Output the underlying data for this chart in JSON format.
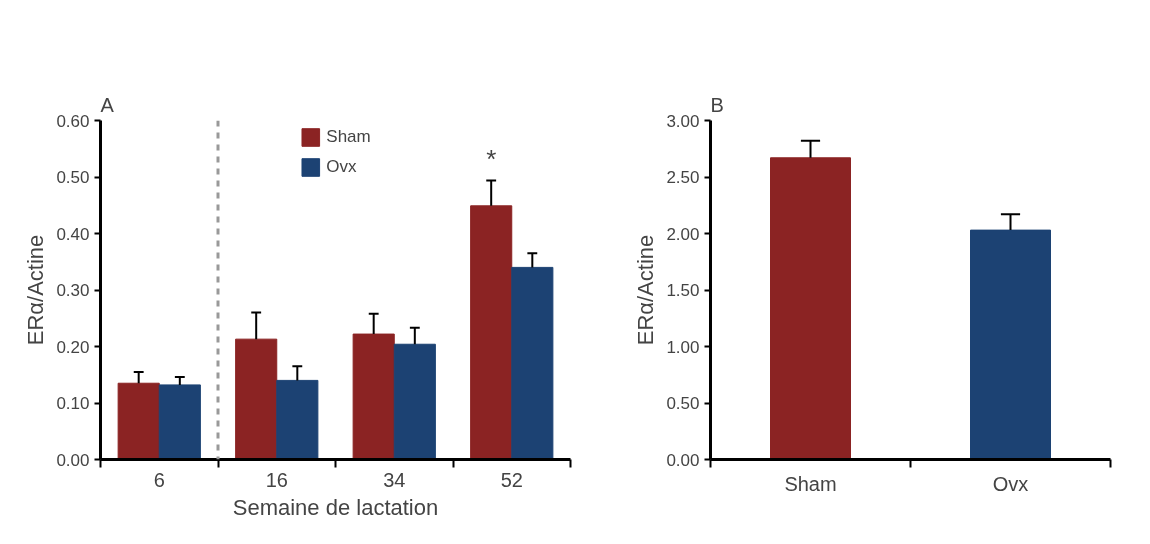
{
  "chart_data": [
    {
      "type": "bar",
      "title": "A",
      "xlabel": "Semaine de lactation",
      "ylabel": "ERα/Actine",
      "categories": [
        "6",
        "16",
        "34",
        "52"
      ],
      "series": [
        {
          "name": "Sham",
          "color": "#8b2323",
          "values": [
            0.135,
            0.213,
            0.222,
            0.449
          ],
          "errors": [
            0.02,
            0.047,
            0.036,
            0.045
          ]
        },
        {
          "name": "Ovx",
          "color": "#1c4273",
          "values": [
            0.132,
            0.14,
            0.204,
            0.34
          ],
          "errors": [
            0.014,
            0.025,
            0.029,
            0.025
          ]
        }
      ],
      "ylim": [
        0,
        0.6
      ],
      "yticks": [
        {
          "value": 0,
          "label": "0.00"
        },
        {
          "value": 0.1,
          "label": "0.10"
        },
        {
          "value": 0.2,
          "label": "0.20"
        },
        {
          "value": 0.3,
          "label": "0.30"
        },
        {
          "value": 0.4,
          "label": "0.40"
        },
        {
          "value": 0.5,
          "label": "0.50"
        },
        {
          "value": 0.6,
          "label": "0.60"
        }
      ],
      "annotations": [
        "*"
      ],
      "legend": "top",
      "grid": false
    },
    {
      "type": "bar",
      "title": "B",
      "ylabel": "ERα/Actine",
      "categories": [
        "Sham",
        "Ovx"
      ],
      "values": [
        2.67,
        2.03
      ],
      "errors": [
        0.15,
        0.14
      ],
      "colors": [
        "#8b2323",
        "#1c4273"
      ],
      "ylim": [
        0,
        3
      ],
      "yticks": [
        {
          "value": 0,
          "label": "0.00"
        },
        {
          "value": 0.5,
          "label": "0.50"
        },
        {
          "value": 1,
          "label": "1.00"
        },
        {
          "value": 1.5,
          "label": "1.50"
        },
        {
          "value": 2,
          "label": "2.00"
        },
        {
          "value": 2.5,
          "label": "2.50"
        },
        {
          "value": 3,
          "label": "3.00"
        }
      ],
      "grid": false
    }
  ]
}
